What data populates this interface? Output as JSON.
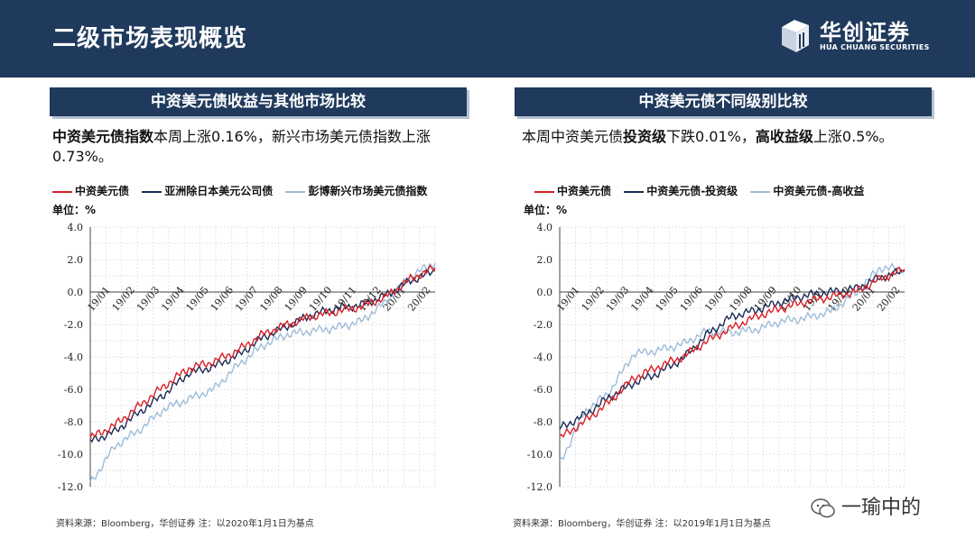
{
  "page_title": "二级市场表现概览",
  "logo": {
    "cn": "华创证券",
    "en": "HUA CHUANG SECURITIES"
  },
  "watermark": "一瑜中的",
  "colors": {
    "red": "#d92027",
    "navy": "#1b2a55",
    "light": "#9dbcd8",
    "header": "#1f3a5c"
  },
  "left": {
    "header": "中资美元债收益与其他市场比较",
    "desc_bold1": "中资美元债指数",
    "desc_text1": "本周上涨0.16%，新兴市场美元债指数上涨0.73%。",
    "unit": "单位：%",
    "source": "资料来源：Bloomberg，华创证券    注：以2020年1月1日为基点"
  },
  "right": {
    "header": "中资美元债不同级别比较",
    "desc_text0": "本周中资美元债",
    "desc_bold1": "投资级",
    "desc_text1": "下跌0.01%，",
    "desc_bold2": "高收益级",
    "desc_text2": "上涨0.5%。",
    "unit": "单位：%",
    "source": "资料来源：Bloomberg，华创证券    注：以2019年1月1日为基点"
  },
  "chart_data": [
    {
      "type": "line",
      "x": [
        "19/01",
        "19/02",
        "19/03",
        "19/04",
        "19/05",
        "19/06",
        "19/07",
        "19/08",
        "19/09",
        "19/10",
        "19/11",
        "19/12",
        "20/01",
        "20/02",
        "20/02e"
      ],
      "xticks": [
        "19/01",
        "19/02",
        "19/03",
        "19/04",
        "19/05",
        "19/06",
        "19/07",
        "19/08",
        "19/09",
        "19/10",
        "19/11",
        "19/12",
        "20/01",
        "20/02"
      ],
      "ylim": [
        -12,
        4
      ],
      "yticks": [
        "4.0",
        "2.0",
        "0.0",
        "-2.0",
        "-4.0",
        "-6.0",
        "-8.0",
        "-10.0",
        "-12.0"
      ],
      "series": [
        {
          "name": "中资美元债",
          "color": "#d92027",
          "values": [
            -9.0,
            -8.2,
            -7.0,
            -5.8,
            -4.7,
            -4.3,
            -3.6,
            -2.6,
            -2.0,
            -1.5,
            -1.2,
            -0.9,
            -0.3,
            0.8,
            1.5
          ]
        },
        {
          "name": "亚洲除日本美元公司债",
          "color": "#1b2a55",
          "values": [
            -9.2,
            -8.6,
            -7.4,
            -6.3,
            -5.0,
            -4.6,
            -3.9,
            -2.8,
            -2.1,
            -1.4,
            -1.0,
            -0.8,
            -0.2,
            0.7,
            1.3
          ]
        },
        {
          "name": "彭博新兴市场美元债指数",
          "color": "#9dbcd8",
          "values": [
            -11.8,
            -9.5,
            -8.5,
            -7.2,
            -6.6,
            -6.0,
            -4.5,
            -3.3,
            -2.6,
            -2.4,
            -2.2,
            -1.8,
            -0.6,
            1.0,
            1.8
          ]
        }
      ]
    },
    {
      "type": "line",
      "x": [
        "19/01",
        "19/02",
        "19/03",
        "19/04",
        "19/05",
        "19/06",
        "19/07",
        "19/08",
        "19/09",
        "19/10",
        "19/11",
        "19/12",
        "20/01",
        "20/02",
        "20/02e"
      ],
      "xticks": [
        "19/01",
        "19/02",
        "19/03",
        "19/04",
        "19/05",
        "19/06",
        "19/07",
        "19/08",
        "19/09",
        "19/10",
        "19/11",
        "19/12",
        "20/01",
        "20/02"
      ],
      "ylim": [
        -12,
        4
      ],
      "yticks": [
        "4.0",
        "2.0",
        "0.0",
        "-2.0",
        "-4.0",
        "-6.0",
        "-8.0",
        "-10.0",
        "-12.0"
      ],
      "series": [
        {
          "name": "中资美元债",
          "color": "#d92027",
          "values": [
            -9.0,
            -8.0,
            -6.8,
            -5.3,
            -4.6,
            -4.0,
            -3.0,
            -2.2,
            -1.5,
            -1.0,
            -0.6,
            -0.3,
            0.0,
            0.8,
            1.4
          ]
        },
        {
          "name": "中资美元债-投资级",
          "color": "#1b2a55",
          "values": [
            -8.4,
            -7.6,
            -6.5,
            -5.6,
            -5.0,
            -4.1,
            -2.6,
            -1.5,
            -1.1,
            -0.6,
            -0.2,
            0.0,
            0.2,
            0.9,
            1.3
          ]
        },
        {
          "name": "中资美元债-高收益",
          "color": "#9dbcd8",
          "values": [
            -10.6,
            -7.4,
            -6.2,
            -3.8,
            -3.6,
            -3.2,
            -2.4,
            -2.5,
            -2.3,
            -1.8,
            -1.6,
            -1.2,
            -0.1,
            1.5,
            1.4
          ]
        }
      ]
    }
  ]
}
